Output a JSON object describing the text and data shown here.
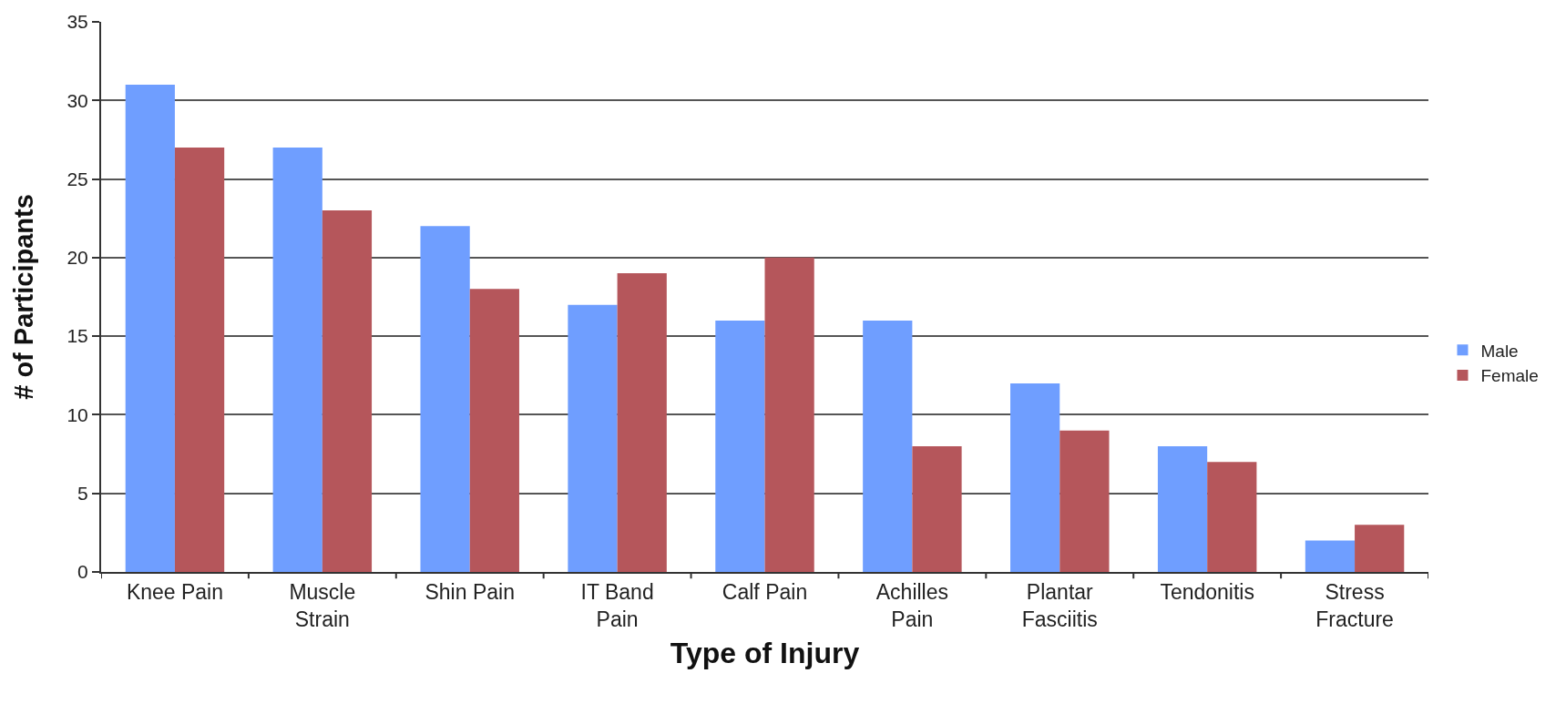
{
  "chart_data": {
    "type": "bar",
    "xlabel": "Type of Injury",
    "ylabel": "# of Participants",
    "categories": [
      "Knee Pain",
      "Muscle\nStrain",
      "Shin Pain",
      "IT Band\nPain",
      "Calf Pain",
      "Achilles\nPain",
      "Plantar\nFasciitis",
      "Tendonitis",
      "Stress\nFracture"
    ],
    "series": [
      {
        "name": "Male",
        "color": "#6f9eff",
        "values": [
          31,
          27,
          22,
          17,
          16,
          16,
          12,
          8,
          2
        ]
      },
      {
        "name": "Female",
        "color": "#b5565b",
        "values": [
          27,
          23,
          18,
          19,
          20,
          8,
          9,
          7,
          3
        ]
      }
    ],
    "ylim": [
      0,
      35
    ],
    "yticks": [
      0,
      5,
      10,
      15,
      20,
      25,
      30,
      35
    ],
    "grid": "y",
    "legend": "right"
  }
}
